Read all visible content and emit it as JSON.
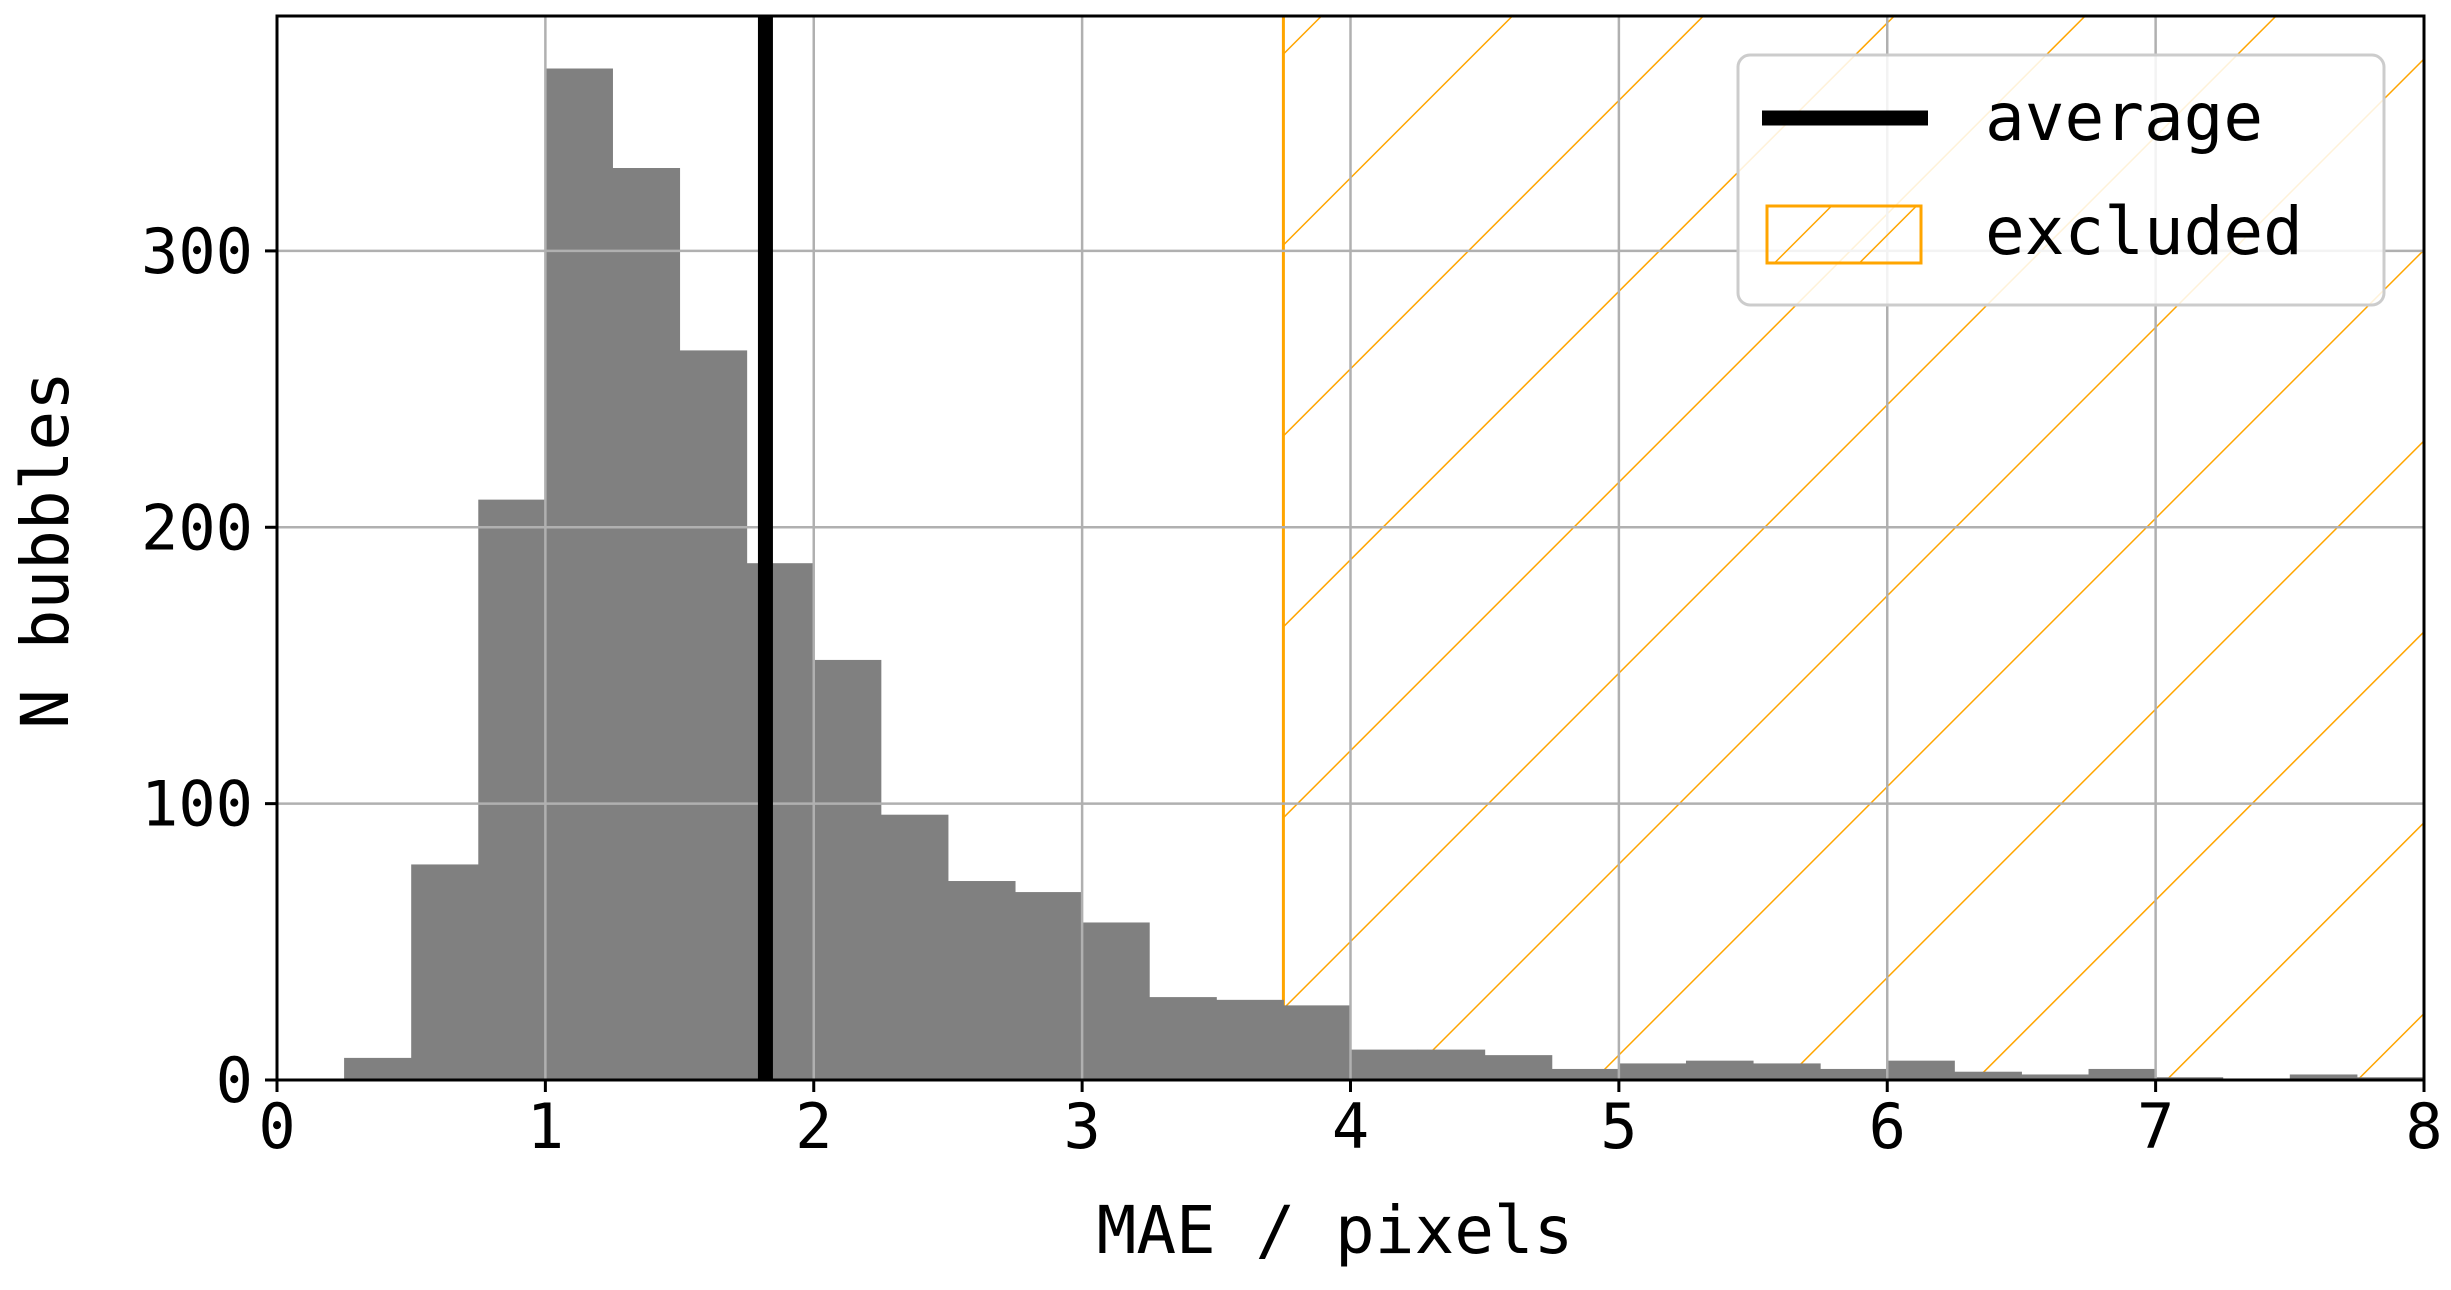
{
  "chart_data": {
    "type": "bar",
    "xlabel": "MAE / pixels",
    "ylabel": "N bubbles",
    "xlim": [
      0,
      8
    ],
    "ylim": [
      0,
      385
    ],
    "xticks": [
      "0",
      "1",
      "2",
      "3",
      "4",
      "5",
      "6",
      "7",
      "8"
    ],
    "yticks": [
      "0",
      "100",
      "200",
      "300"
    ],
    "grid": true,
    "bin_width": 0.25,
    "bins": [
      {
        "x": 0.25,
        "count": 8
      },
      {
        "x": 0.5,
        "count": 78
      },
      {
        "x": 0.75,
        "count": 210
      },
      {
        "x": 1.0,
        "count": 366
      },
      {
        "x": 1.25,
        "count": 330
      },
      {
        "x": 1.5,
        "count": 264
      },
      {
        "x": 1.75,
        "count": 187
      },
      {
        "x": 2.0,
        "count": 152
      },
      {
        "x": 2.25,
        "count": 96
      },
      {
        "x": 2.5,
        "count": 72
      },
      {
        "x": 2.75,
        "count": 68
      },
      {
        "x": 3.0,
        "count": 57
      },
      {
        "x": 3.25,
        "count": 30
      },
      {
        "x": 3.5,
        "count": 29
      },
      {
        "x": 3.75,
        "count": 27
      },
      {
        "x": 4.0,
        "count": 11
      },
      {
        "x": 4.25,
        "count": 11
      },
      {
        "x": 4.5,
        "count": 9
      },
      {
        "x": 4.75,
        "count": 4
      },
      {
        "x": 5.0,
        "count": 6
      },
      {
        "x": 5.25,
        "count": 7
      },
      {
        "x": 5.5,
        "count": 6
      },
      {
        "x": 5.75,
        "count": 4
      },
      {
        "x": 6.0,
        "count": 7
      },
      {
        "x": 6.25,
        "count": 3
      },
      {
        "x": 6.5,
        "count": 2
      },
      {
        "x": 6.75,
        "count": 4
      },
      {
        "x": 7.0,
        "count": 1
      },
      {
        "x": 7.25,
        "count": 0
      },
      {
        "x": 7.5,
        "count": 2
      },
      {
        "x": 7.75,
        "count": 1
      }
    ],
    "average": 1.82,
    "excluded_from": 3.75,
    "legend": {
      "position": "top-right",
      "entries": [
        {
          "label": "average",
          "kind": "line",
          "color": "#000000"
        },
        {
          "label": "excluded",
          "kind": "hatch",
          "color": "#ffa500"
        }
      ]
    },
    "colors": {
      "bars": "#808080",
      "average": "#000000",
      "excluded": "#ffa500",
      "grid": "#b0b0b0"
    }
  }
}
